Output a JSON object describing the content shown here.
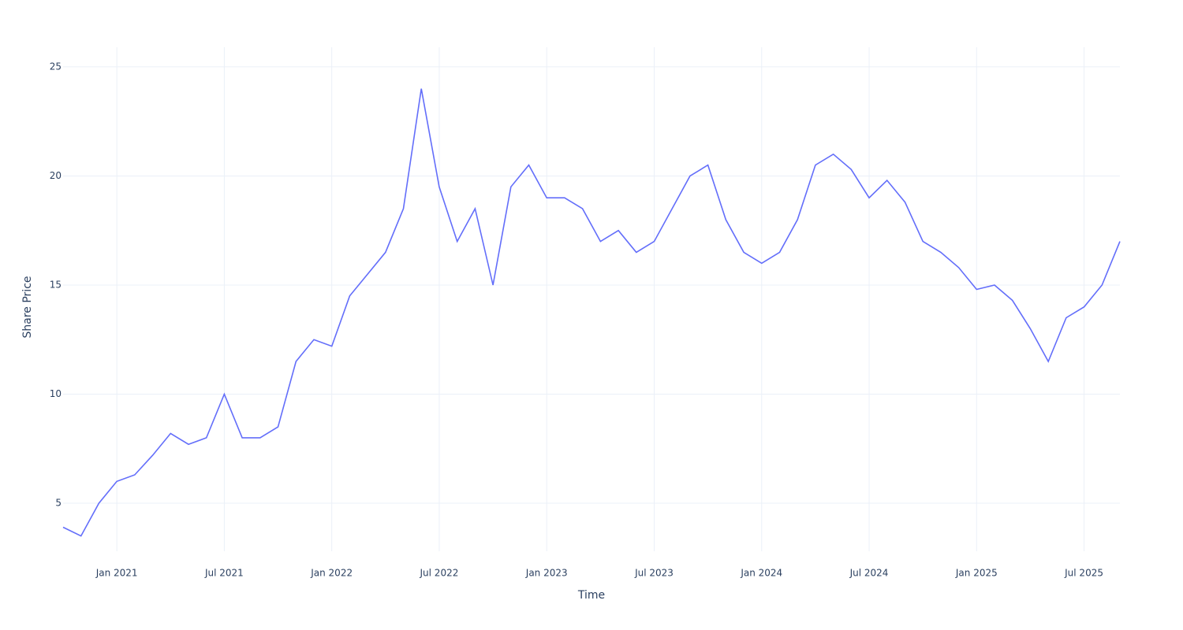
{
  "chart_data": {
    "type": "line",
    "xlabel": "Time",
    "ylabel": "Share Price",
    "x": [
      "2020-10",
      "2020-11",
      "2020-12",
      "2021-01",
      "2021-02",
      "2021-03",
      "2021-04",
      "2021-05",
      "2021-06",
      "2021-07",
      "2021-08",
      "2021-09",
      "2021-10",
      "2021-11",
      "2021-12",
      "2022-01",
      "2022-02",
      "2022-03",
      "2022-04",
      "2022-05",
      "2022-06",
      "2022-07",
      "2022-08",
      "2022-09",
      "2022-10",
      "2022-11",
      "2022-12",
      "2023-01",
      "2023-02",
      "2023-03",
      "2023-04",
      "2023-05",
      "2023-06",
      "2023-07",
      "2023-08",
      "2023-09",
      "2023-10",
      "2023-11",
      "2023-12",
      "2024-01",
      "2024-02",
      "2024-03",
      "2024-04",
      "2024-05",
      "2024-06",
      "2024-07",
      "2024-08",
      "2024-09",
      "2024-10",
      "2024-11",
      "2024-12",
      "2025-01",
      "2025-02",
      "2025-03",
      "2025-04",
      "2025-05",
      "2025-06",
      "2025-07",
      "2025-08",
      "2025-09"
    ],
    "values": [
      3.9,
      3.5,
      5.0,
      6.0,
      6.3,
      7.2,
      8.2,
      7.7,
      8.0,
      10.0,
      8.0,
      8.0,
      8.5,
      11.5,
      12.5,
      12.2,
      14.5,
      15.5,
      16.5,
      18.5,
      24.0,
      19.5,
      17.0,
      18.5,
      15.0,
      19.5,
      20.5,
      19.0,
      19.0,
      18.5,
      17.0,
      17.5,
      16.5,
      17.0,
      18.5,
      20.0,
      20.5,
      18.0,
      16.5,
      16.0,
      16.5,
      18.0,
      20.5,
      21.0,
      20.3,
      19.0,
      19.8,
      18.8,
      17.0,
      16.5,
      15.8,
      14.8,
      15.0,
      14.3,
      13.0,
      11.5,
      13.5,
      14.0,
      15.0,
      17.0
    ],
    "color": "#636efa",
    "xlim": [
      "2020-10",
      "2025-09"
    ],
    "xticks": [
      {
        "value": "2021-01",
        "label": "Jan 2021"
      },
      {
        "value": "2021-07",
        "label": "Jul 2021"
      },
      {
        "value": "2022-01",
        "label": "Jan 2022"
      },
      {
        "value": "2022-07",
        "label": "Jul 2022"
      },
      {
        "value": "2023-01",
        "label": "Jan 2023"
      },
      {
        "value": "2023-07",
        "label": "Jul 2023"
      },
      {
        "value": "2024-01",
        "label": "Jan 2024"
      },
      {
        "value": "2024-07",
        "label": "Jul 2024"
      },
      {
        "value": "2025-01",
        "label": "Jan 2025"
      },
      {
        "value": "2025-07",
        "label": "Jul 2025"
      }
    ],
    "ylim": [
      2.8,
      25.9
    ],
    "yticks": [
      5,
      10,
      15,
      20,
      25
    ],
    "grid": true
  }
}
